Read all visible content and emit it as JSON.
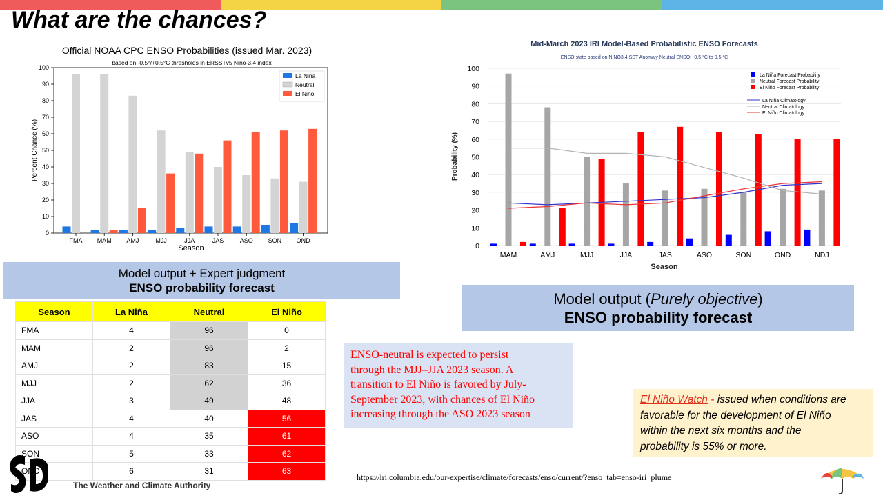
{
  "slide": {
    "title": "What are the chances?",
    "topbar_colors": [
      "#ef5a5a",
      "#f4d444",
      "#7bc47f",
      "#5bb4e5"
    ]
  },
  "left_box": {
    "line1": "Model output + Expert judgment",
    "line2": "ENSO probability forecast"
  },
  "right_box": {
    "line1_pre": "Model output (",
    "line1_italic": "Purely objective",
    "line1_post": ")",
    "line2": "ENSO probability forecast"
  },
  "table": {
    "headers": [
      "Season",
      "La Niña",
      "Neutral",
      "El Niño"
    ],
    "rows": [
      [
        "FMA",
        "4",
        "96",
        "0"
      ],
      [
        "MAM",
        "2",
        "96",
        "2"
      ],
      [
        "AMJ",
        "2",
        "83",
        "15"
      ],
      [
        "MJJ",
        "2",
        "62",
        "36"
      ],
      [
        "JJA",
        "3",
        "49",
        "48"
      ],
      [
        "JAS",
        "4",
        "40",
        "56"
      ],
      [
        "ASO",
        "4",
        "35",
        "61"
      ],
      [
        "SON",
        "5",
        "33",
        "62"
      ],
      [
        "OND",
        "6",
        "31",
        "63"
      ]
    ]
  },
  "textbox": {
    "line1": "ENSO-neutral is expected to persist",
    "line2": "through the MJJ–JJA 2023 season.  A",
    "line3": "transition to El Niño is favored by July-",
    "line4": "September 2023, with chances of El Niño",
    "line5": "increasing through the ASO 2023 season"
  },
  "watch": {
    "title": "El Niño Watch",
    "dash": " - ",
    "l1": "issued when conditions are",
    "l2": "favorable for the development of El Niño",
    "l3": "within the next six months and the",
    "l4": "probability is 55% or more."
  },
  "url": "https://iri.columbia.edu/our-expertise/climate/forecasts/enso/current/?enso_tab=enso-iri_plume",
  "logo": {
    "text": "The Weather and Climate Authority"
  },
  "colors": {
    "cpc_lanina": "#1f77e6",
    "cpc_neutral": "#d4d4d4",
    "cpc_elnino": "#ff5a3c",
    "iri_lanina": "#0000ff",
    "iri_neutral": "#a6a6a6",
    "iri_elnino": "#ff0000",
    "box_blue": "#b4c7e7",
    "box_lightblue": "#dae3f3",
    "box_yellow": "#fff2cc"
  },
  "chart_data": [
    {
      "type": "bar",
      "title": "Official NOAA CPC ENSO Probabilities (issued Mar. 2023)",
      "subtitle": "based on -0.5°/+0.5°C thresholds in ERSSTv5 Niño-3.4 index",
      "xlabel": "Season",
      "ylabel": "Percent Chance (%)",
      "ylim": [
        0,
        100
      ],
      "yticks": [
        0,
        10,
        20,
        30,
        40,
        50,
        60,
        70,
        80,
        90,
        100
      ],
      "categories": [
        "FMA",
        "MAM",
        "AMJ",
        "MJJ",
        "JJA",
        "JAS",
        "ASO",
        "SON",
        "OND"
      ],
      "series": [
        {
          "name": "La Nina",
          "values": [
            4,
            2,
            2,
            2,
            3,
            4,
            4,
            5,
            6
          ]
        },
        {
          "name": "Neutral",
          "values": [
            96,
            96,
            83,
            62,
            49,
            40,
            35,
            33,
            31
          ]
        },
        {
          "name": "El Nino",
          "values": [
            0,
            2,
            15,
            36,
            48,
            56,
            61,
            62,
            63
          ]
        }
      ],
      "legend": "top-right",
      "grid": false
    },
    {
      "type": "bar",
      "title": "Mid-March 2023 IRI Model-Based Probabilistic ENSO Forecasts",
      "subtitle": "ENSO state based on NINO3.4 SST Anomaly Neutral ENSO: -0.5 °C to 0.5 °C",
      "xlabel": "Season",
      "ylabel": "Probability (%)",
      "ylim": [
        0,
        100
      ],
      "yticks": [
        0,
        10,
        20,
        30,
        40,
        50,
        60,
        70,
        80,
        90,
        100
      ],
      "categories": [
        "MAM",
        "AMJ",
        "MJJ",
        "JJA",
        "JAS",
        "ASO",
        "SON",
        "OND",
        "NDJ"
      ],
      "series": [
        {
          "name": "La Niña Forecast Probability",
          "values": [
            1,
            1,
            1,
            1,
            2,
            4,
            6,
            8,
            9
          ]
        },
        {
          "name": "Neutral Forecast Probability",
          "values": [
            97,
            78,
            50,
            35,
            31,
            32,
            30,
            32,
            31
          ]
        },
        {
          "name": "El Niño Forecast Probability",
          "values": [
            2,
            21,
            49,
            64,
            67,
            64,
            63,
            60,
            60
          ]
        }
      ],
      "climatology": [
        {
          "name": "La Niña Climatology",
          "values": [
            24,
            23,
            24,
            25,
            26,
            27,
            30,
            34,
            35
          ]
        },
        {
          "name": "Neutral Climatology",
          "values": [
            55,
            55,
            52,
            52,
            50,
            44,
            38,
            31,
            29
          ]
        },
        {
          "name": "El Niño Climatology",
          "values": [
            21,
            22,
            24,
            23,
            24,
            28,
            32,
            35,
            36
          ]
        }
      ],
      "legend": "top-right",
      "grid": true
    }
  ]
}
